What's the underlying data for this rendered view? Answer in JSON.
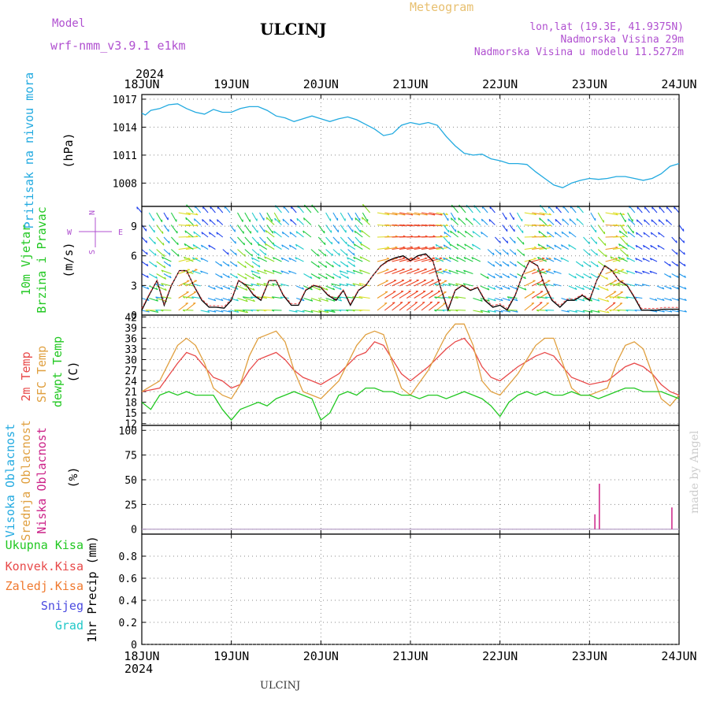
{
  "header": {
    "model_label": "Model",
    "model_name": "wrf-nmm_v3.9.1  e1km",
    "station": "ULCINJ",
    "meteogram": "Meteogram",
    "lonlat": "lon,lat (19.3E, 41.9375N)",
    "altitude": "Nadmorska Visina 29m",
    "model_altitude": "Nadmorska Visina u modelu 11.5272m",
    "credit": "made by Angel",
    "footer_station": "ULCINJ"
  },
  "colors": {
    "pressure": "#22aae0",
    "temp2m": "#e84a4a",
    "sfc": "#e0a040",
    "dewpt": "#22c822",
    "cloud_high": "#22aae0",
    "cloud_mid": "#e0a040",
    "cloud_low": "#cc2288",
    "precip_total": "#22c822",
    "precip_conv": "#e84a4a",
    "precip_frozen": "#f07a30",
    "precip_snow": "#4a4ae0",
    "precip_hail": "#22c8c8",
    "model_color": "#b050d0"
  },
  "x_axis": {
    "year": "2024",
    "days": [
      "18JUN",
      "19JUN",
      "20JUN",
      "21JUN",
      "22JUN",
      "23JUN",
      "24JUN"
    ]
  },
  "compass": {
    "n": "N",
    "s": "S",
    "e": "E",
    "w": "W"
  },
  "chart_data": [
    {
      "type": "line",
      "labels": [
        "Pritisak na nivou mora",
        "(hPa)"
      ],
      "ylim": [
        1005.5,
        1017.5
      ],
      "yticks": [
        1008,
        1011,
        1014,
        1017
      ],
      "series": [
        {
          "key": "pressure",
          "x": [
            0,
            0.04,
            0.1,
            0.2,
            0.3,
            0.4,
            0.5,
            0.6,
            0.7,
            0.8,
            0.9,
            1.0,
            1.1,
            1.2,
            1.3,
            1.4,
            1.5,
            1.6,
            1.7,
            1.8,
            1.9,
            2.0,
            2.1,
            2.2,
            2.3,
            2.4,
            2.5,
            2.6,
            2.7,
            2.8,
            2.9,
            3.0,
            3.1,
            3.2,
            3.3,
            3.4,
            3.5,
            3.6,
            3.7,
            3.8,
            3.9,
            4.0,
            4.1,
            4.2,
            4.3,
            4.4,
            4.5,
            4.6,
            4.7,
            4.8,
            4.9,
            5.0,
            5.1,
            5.2,
            5.3,
            5.4,
            5.5,
            5.6,
            5.7,
            5.8,
            5.9,
            6.0
          ],
          "values": [
            1015.5,
            1015.3,
            1015.8,
            1016.0,
            1016.4,
            1016.5,
            1016.0,
            1015.6,
            1015.4,
            1015.9,
            1015.6,
            1015.6,
            1016.0,
            1016.2,
            1016.2,
            1015.8,
            1015.2,
            1015.0,
            1014.6,
            1014.9,
            1015.2,
            1014.9,
            1014.6,
            1014.9,
            1015.1,
            1014.8,
            1014.3,
            1013.8,
            1013.1,
            1013.3,
            1014.2,
            1014.5,
            1014.3,
            1014.5,
            1014.2,
            1013.0,
            1012.0,
            1011.2,
            1011.0,
            1011.1,
            1010.6,
            1010.4,
            1010.1,
            1010.1,
            1010.0,
            1009.2,
            1008.5,
            1007.8,
            1007.5,
            1008.0,
            1008.3,
            1008.5,
            1008.4,
            1008.5,
            1008.7,
            1008.7,
            1008.5,
            1008.3,
            1008.5,
            1009.0,
            1009.8,
            1010.1
          ]
        }
      ]
    },
    {
      "type": "line",
      "labels": [
        "10m Vjetar",
        "Brzina i Pravac",
        "(m/s)"
      ],
      "ylim": [
        0,
        11
      ],
      "yticks": [
        0,
        3,
        6,
        9
      ],
      "series": [
        {
          "key": "wind_speed",
          "x": [
            0.0,
            0.08,
            0.17,
            0.25,
            0.33,
            0.42,
            0.5,
            0.58,
            0.67,
            0.75,
            0.83,
            0.92,
            1.0,
            1.08,
            1.17,
            1.25,
            1.33,
            1.42,
            1.5,
            1.58,
            1.67,
            1.75,
            1.83,
            1.92,
            2.0,
            2.08,
            2.17,
            2.25,
            2.33,
            2.42,
            2.5,
            2.58,
            2.67,
            2.75,
            2.83,
            2.92,
            3.0,
            3.08,
            3.17,
            3.25,
            3.33,
            3.42,
            3.5,
            3.58,
            3.67,
            3.75,
            3.83,
            3.92,
            4.0,
            4.08,
            4.17,
            4.25,
            4.33,
            4.42,
            4.5,
            4.58,
            4.67,
            4.75,
            4.83,
            4.92,
            5.0,
            5.08,
            5.17,
            5.25,
            5.33,
            5.42,
            5.5,
            5.58,
            5.67,
            5.75,
            5.83,
            5.92,
            6.0
          ],
          "values": [
            0.5,
            2.0,
            3.5,
            1.0,
            3.0,
            4.5,
            4.5,
            3.0,
            1.5,
            0.8,
            0.8,
            0.7,
            1.5,
            3.5,
            3.0,
            2.0,
            1.5,
            3.5,
            3.5,
            2.0,
            1.0,
            1.0,
            2.5,
            3.0,
            2.8,
            2.0,
            1.5,
            2.5,
            1.0,
            2.5,
            3.0,
            4.0,
            5.0,
            5.5,
            5.8,
            6.0,
            5.5,
            6.0,
            6.2,
            5.5,
            3.0,
            0.5,
            2.5,
            3.0,
            2.5,
            2.8,
            1.5,
            0.8,
            1.0,
            0.5,
            2.0,
            4.0,
            5.5,
            5.0,
            3.0,
            1.5,
            0.8,
            1.5,
            1.5,
            2.0,
            1.5,
            3.5,
            5.0,
            4.5,
            3.5,
            3.0,
            1.8,
            0.5,
            0.5,
            0.5,
            0.6,
            0.6,
            0.6
          ]
        }
      ]
    },
    {
      "type": "line",
      "labels": [
        "2m Temp",
        "SFC Temp",
        "dewpt Temp",
        "(C)"
      ],
      "ylim": [
        11.5,
        42.5
      ],
      "yticks": [
        12,
        15,
        18,
        21,
        24,
        27,
        30,
        33,
        36,
        39,
        42
      ],
      "series": [
        {
          "key": "temp2m",
          "name": "2m Temp",
          "x": [
            0,
            0.2,
            0.4,
            0.5,
            0.6,
            0.7,
            0.8,
            0.9,
            1.0,
            1.1,
            1.2,
            1.3,
            1.4,
            1.5,
            1.6,
            1.7,
            1.8,
            1.9,
            2.0,
            2.2,
            2.4,
            2.5,
            2.6,
            2.7,
            2.8,
            2.9,
            3.0,
            3.2,
            3.4,
            3.5,
            3.6,
            3.7,
            3.8,
            3.9,
            4.0,
            4.2,
            4.4,
            4.5,
            4.6,
            4.7,
            4.8,
            4.9,
            5.0,
            5.2,
            5.3,
            5.4,
            5.5,
            5.6,
            5.7,
            5.8,
            5.9,
            6.0
          ],
          "values": [
            21,
            22,
            29,
            32,
            31,
            28,
            25,
            24,
            22,
            23,
            27,
            30,
            31,
            32,
            30,
            27,
            25,
            24,
            23,
            26,
            31,
            32,
            35,
            34,
            30,
            26,
            24,
            28,
            33,
            35,
            36,
            33,
            28,
            25,
            24,
            28,
            31,
            32,
            31,
            28,
            25,
            24,
            23,
            24,
            26,
            28,
            29,
            28,
            26,
            23,
            21,
            20
          ]
        },
        {
          "key": "sfc",
          "name": "SFC Temp",
          "x": [
            0,
            0.2,
            0.4,
            0.5,
            0.6,
            0.7,
            0.8,
            0.9,
            1.0,
            1.1,
            1.2,
            1.3,
            1.4,
            1.5,
            1.6,
            1.7,
            1.8,
            1.9,
            2.0,
            2.2,
            2.4,
            2.5,
            2.6,
            2.7,
            2.8,
            2.9,
            3.0,
            3.2,
            3.4,
            3.5,
            3.6,
            3.7,
            3.8,
            3.9,
            4.0,
            4.2,
            4.4,
            4.5,
            4.6,
            4.7,
            4.8,
            4.9,
            5.0,
            5.2,
            5.3,
            5.4,
            5.5,
            5.6,
            5.7,
            5.8,
            5.9,
            6.0
          ],
          "values": [
            21,
            24,
            34,
            36,
            34,
            29,
            22,
            20,
            19,
            23,
            31,
            36,
            37,
            38,
            35,
            27,
            21,
            20,
            19,
            24,
            34,
            37,
            38,
            37,
            29,
            22,
            20,
            27,
            37,
            40,
            40,
            34,
            24,
            21,
            20,
            26,
            34,
            36,
            36,
            29,
            22,
            20,
            20,
            22,
            29,
            34,
            35,
            33,
            26,
            19,
            17,
            20
          ]
        },
        {
          "key": "dewpt",
          "name": "dewpt Temp",
          "x": [
            0,
            0.1,
            0.2,
            0.3,
            0.4,
            0.5,
            0.6,
            0.7,
            0.8,
            0.9,
            1.0,
            1.1,
            1.2,
            1.3,
            1.4,
            1.5,
            1.6,
            1.7,
            1.8,
            1.9,
            2.0,
            2.1,
            2.2,
            2.3,
            2.4,
            2.5,
            2.6,
            2.7,
            2.8,
            2.9,
            3.0,
            3.1,
            3.2,
            3.3,
            3.4,
            3.5,
            3.6,
            3.7,
            3.8,
            3.9,
            4.0,
            4.1,
            4.2,
            4.3,
            4.4,
            4.5,
            4.6,
            4.7,
            4.8,
            4.9,
            5.0,
            5.1,
            5.2,
            5.3,
            5.4,
            5.5,
            5.6,
            5.7,
            5.8,
            5.9,
            6.0
          ],
          "values": [
            18,
            16,
            20,
            21,
            20,
            21,
            20,
            20,
            20,
            16,
            13,
            16,
            17,
            18,
            17,
            19,
            20,
            21,
            20,
            19,
            13,
            15,
            20,
            21,
            20,
            22,
            22,
            21,
            21,
            20,
            20,
            19,
            20,
            20,
            19,
            20,
            21,
            20,
            19,
            17,
            14,
            18,
            20,
            21,
            20,
            21,
            20,
            20,
            21,
            20,
            20,
            19,
            20,
            21,
            22,
            22,
            21,
            21,
            21,
            20,
            19
          ]
        }
      ]
    },
    {
      "type": "bar",
      "labels": [
        "Visoka Oblacnost",
        "Srednja Oblacnost",
        "Niska Oblacnost",
        "(%)"
      ],
      "ylim": [
        -5,
        105
      ],
      "yticks": [
        0,
        25,
        50,
        75,
        100
      ],
      "series": [
        {
          "key": "cloud_low",
          "name": "Niska Oblacnost",
          "x": [
            5.06,
            5.11,
            5.92
          ],
          "values": [
            15,
            46,
            22
          ]
        }
      ]
    },
    {
      "type": "bar",
      "labels": [
        "Ukupna Kisa",
        "Konvek.Kisa",
        "Zaledj.Kisa",
        "Snijeg",
        "Grad",
        "1hr Precip (mm)"
      ],
      "ylim": [
        0,
        1.0
      ],
      "yticks": [
        0,
        0.2,
        0.4,
        0.6,
        0.8
      ],
      "series": [
        {
          "key": "precip_total",
          "name": "Ukupna Kisa",
          "x": [],
          "values": []
        }
      ]
    }
  ]
}
